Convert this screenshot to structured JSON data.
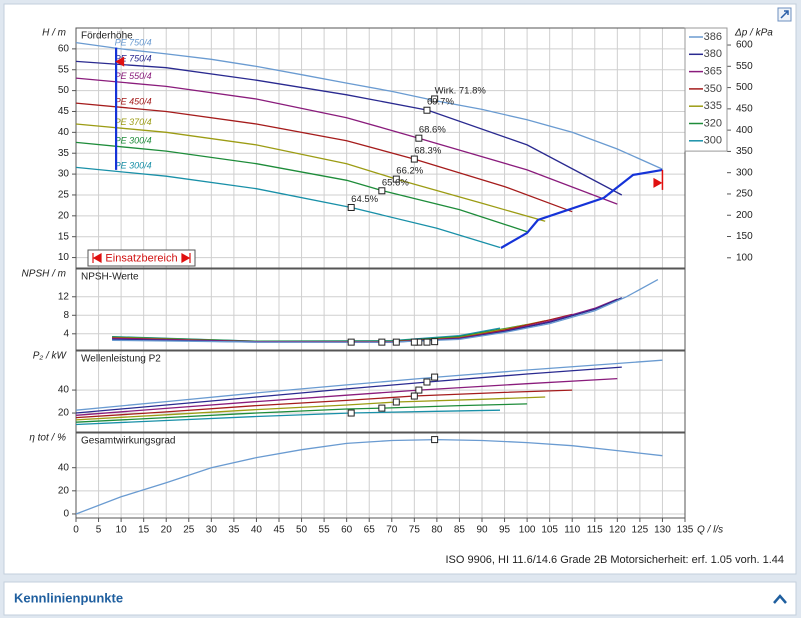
{
  "chart_data": {
    "type": "pump-curves",
    "x_label": "Q / l/s",
    "xlim": [
      0,
      135
    ],
    "xticks": [
      0,
      5,
      10,
      15,
      20,
      25,
      30,
      35,
      40,
      45,
      50,
      55,
      60,
      65,
      70,
      75,
      80,
      85,
      90,
      95,
      100,
      105,
      110,
      115,
      120,
      125,
      130,
      135
    ],
    "grid": true,
    "legend": "right",
    "series": [
      {
        "name": "386",
        "color": "#6a9bd1",
        "motor": "PE 750/4"
      },
      {
        "name": "380",
        "color": "#2a2a90",
        "motor": "PE 750/4"
      },
      {
        "name": "365",
        "color": "#8a1c7c",
        "motor": "PE 550/4"
      },
      {
        "name": "350",
        "color": "#a51c1c",
        "motor": "PE 450/4"
      },
      {
        "name": "335",
        "color": "#9c9c14",
        "motor": "PE 370/4"
      },
      {
        "name": "320",
        "color": "#1e8c3a",
        "motor": "PE 300/4"
      },
      {
        "name": "300",
        "color": "#1990a8",
        "motor": "PE 300/4"
      }
    ],
    "panels": [
      {
        "title": "Förderhöhe",
        "y_label": "H / m",
        "ylim": [
          7.5,
          65
        ],
        "yticks": [
          10,
          15,
          20,
          25,
          30,
          35,
          40,
          45,
          50,
          55,
          60
        ],
        "y2_label": "Δp / kPa",
        "y2lim": [
          76,
          640
        ],
        "y2ticks": [
          100,
          150,
          200,
          250,
          300,
          350,
          400,
          450,
          500,
          550,
          600
        ],
        "curves": [
          {
            "x": [
              0,
              10,
              20,
              30,
              40,
              50,
              60,
              70,
              80,
              90,
              100,
              110,
              120,
              130
            ],
            "values": [
              61.5,
              60,
              58.8,
              57.5,
              55.8,
              53.8,
              51.8,
              49.8,
              47.5,
              45.5,
              43,
              40,
              36,
              31.2
            ]
          },
          {
            "x": [
              0,
              20,
              40,
              60,
              78,
              100,
              121
            ],
            "values": [
              57,
              55.5,
              52.5,
              49,
              45.3,
              37,
              25
            ]
          },
          {
            "x": [
              0,
              20,
              40,
              60,
              76,
              100,
              120
            ],
            "values": [
              53,
              51,
              48,
              43.5,
              38.6,
              31,
              22.8
            ]
          },
          {
            "x": [
              0,
              20,
              40,
              60,
              75,
              95,
              110
            ],
            "values": [
              47,
              45,
              42,
              38,
              33.6,
              27,
              21
            ]
          },
          {
            "x": [
              0,
              20,
              40,
              60,
              71,
              90,
              104
            ],
            "values": [
              42,
              40,
              37,
              32.5,
              28.8,
              23,
              18.7
            ]
          },
          {
            "x": [
              0,
              20,
              40,
              60,
              68,
              85,
              100
            ],
            "values": [
              37.6,
              35.5,
              32.5,
              28.5,
              26,
              21.5,
              16.2
            ]
          },
          {
            "x": [
              0,
              20,
              40,
              61,
              80,
              94
            ],
            "values": [
              31.6,
              29.5,
              26.5,
              22,
              17,
              12.4
            ]
          }
        ],
        "points": {
          "x": [
            79.5,
            77.8,
            76,
            75,
            71,
            67.8,
            61
          ],
          "values": [
            48,
            45.3,
            38.6,
            33.6,
            28.8,
            26,
            22
          ],
          "labels": [
            "Wirk.  71.8%",
            "69.7%",
            "68.6%",
            "68.3%",
            "66.2%",
            "65.6%",
            "64.5%"
          ]
        },
        "range": {
          "label": "Einsatzbereich",
          "left_x": [
            8.9,
            8.9
          ],
          "left_values": [
            60.3,
            31
          ],
          "right_x": [
            94.2,
            100,
            102.4,
            117,
            123.5,
            130
          ],
          "right_values": [
            12.3,
            15.9,
            19,
            24.3,
            29.8,
            31
          ]
        }
      },
      {
        "title": "NPSH-Werte",
        "y_label": "NPSH / m",
        "ylim": [
          0.5,
          18
        ],
        "yticks": [
          4,
          8,
          12
        ],
        "curves": [
          {
            "x": [
              8,
              40,
              70,
              85,
              95,
              105,
              115,
              122,
              129
            ],
            "values": [
              2.6,
              2.2,
              2.2,
              2.8,
              4.3,
              6.2,
              9,
              12,
              15.7
            ]
          },
          {
            "x": [
              8,
              40,
              70,
              85,
              95,
              105,
              115,
              121
            ],
            "values": [
              2.8,
              2.2,
              2.2,
              2.9,
              4.5,
              6.5,
              9.3,
              11.8
            ]
          },
          {
            "x": [
              8,
              40,
              70,
              85,
              95,
              105,
              115,
              120
            ],
            "values": [
              3,
              2.3,
              2.2,
              3,
              4.6,
              6.7,
              9.5,
              11.5
            ]
          },
          {
            "x": [
              8,
              40,
              70,
              85,
              95,
              105,
              110
            ],
            "values": [
              3.1,
              2.3,
              2.3,
              3.1,
              4.8,
              7,
              8.2
            ]
          },
          {
            "x": [
              8,
              40,
              70,
              85,
              95,
              104
            ],
            "values": [
              3.2,
              2.3,
              2.3,
              3.2,
              5,
              6.8
            ]
          },
          {
            "x": [
              8,
              40,
              70,
              85,
              95,
              100
            ],
            "values": [
              3.3,
              2.4,
              2.4,
              3.4,
              5.1,
              6
            ]
          },
          {
            "x": [
              8,
              40,
              70,
              85,
              94
            ],
            "values": [
              3.4,
              2.4,
              2.5,
              3.6,
              5.2
            ]
          }
        ],
        "points": {
          "x": [
            79.5,
            77.8,
            76,
            75,
            71,
            67.8,
            61
          ],
          "values": [
            2.3,
            2.2,
            2.2,
            2.2,
            2.2,
            2.2,
            2.2
          ]
        }
      },
      {
        "title": "Wellenleistung P2",
        "y_label": "P₂ / kW",
        "ylim": [
          3.5,
          74
        ],
        "yticks": [
          20,
          40
        ],
        "curves": [
          {
            "x": [
              0,
              20,
              40,
              60,
              80,
              100,
              130
            ],
            "values": [
              22.5,
              30,
              37.5,
              44.5,
              51.3,
              57.5,
              66
            ]
          },
          {
            "x": [
              0,
              20,
              40,
              60,
              78,
              100,
              121
            ],
            "values": [
              20,
              27,
              34,
              41,
              47,
              54,
              60
            ]
          },
          {
            "x": [
              0,
              20,
              40,
              60,
              76,
              100,
              120
            ],
            "values": [
              18,
              24,
              30,
              35.5,
              40,
              45.5,
              50
            ]
          },
          {
            "x": [
              0,
              20,
              40,
              60,
              75,
              95,
              110
            ],
            "values": [
              16,
              21,
              26.5,
              31,
              34.8,
              38,
              40
            ]
          },
          {
            "x": [
              0,
              20,
              40,
              60,
              71,
              90,
              104
            ],
            "values": [
              14,
              18.5,
              23,
              27,
              29.6,
              32,
              34
            ]
          },
          {
            "x": [
              0,
              20,
              40,
              60,
              68,
              85,
              100
            ],
            "values": [
              12,
              16,
              20,
              23.5,
              24.3,
              26.5,
              28
            ]
          },
          {
            "x": [
              0,
              20,
              40,
              61,
              80,
              94
            ],
            "values": [
              10,
              13.5,
              17,
              20,
              21.5,
              22.5
            ]
          }
        ],
        "points": {
          "x": [
            79.5,
            77.8,
            76,
            75,
            71,
            67.8,
            61
          ],
          "values": [
            51.3,
            47,
            40,
            34.8,
            29.6,
            24.3,
            20
          ]
        }
      },
      {
        "title": "Gesamtwirkungsgrad",
        "y_label": "η tot / %",
        "ylim": [
          -3.5,
          70
        ],
        "yticks": [
          0,
          20,
          40
        ],
        "curves": [
          {
            "x": [
              0,
              10,
              20,
              30,
              40,
              50,
              60,
              70,
              80,
              90,
              100,
              110,
              120,
              130
            ],
            "values": [
              0,
              14.8,
              27,
              40,
              48.7,
              55.6,
              61,
              63.5,
              64.3,
              63.5,
              61.7,
              59,
              54.8,
              50.4
            ]
          }
        ],
        "points": {
          "x": [
            79.5
          ],
          "values": [
            64.3
          ]
        }
      }
    ],
    "footer": "ISO 9906, HI 11.6/14.6 Grade 2B  Motorsicherheit: erf. 1.05  vorh. 1.44",
    "section": "Kennlinienpunkte"
  }
}
